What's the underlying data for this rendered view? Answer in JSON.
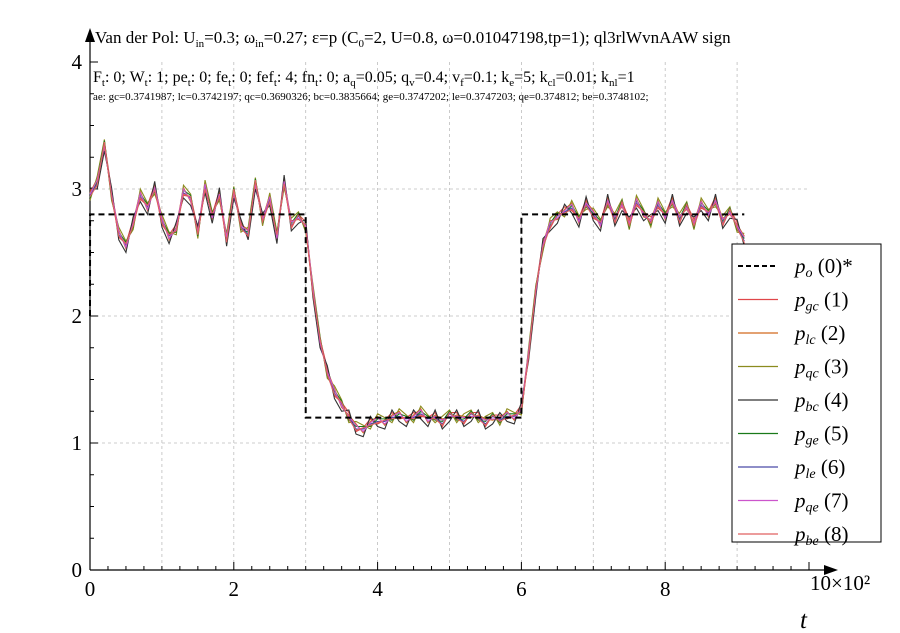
{
  "title": "Van der Pol: U_in=0.3; ω_in=0.27; ε=p (C_0=2, U=0.8, ω=0.01047198,tp=1); ql3rlWvnAAW sign",
  "title_parts": {
    "a": "Van der Pol: U",
    "a_sub": "in",
    "b": "=0.3; ω",
    "b_sub": "in",
    "c": "=0.27; ε=p (C",
    "c_sub": "0",
    "d": "=2, U=0.8, ω=0.01047198,tp=1); ql3rlWvnAAW sign"
  },
  "params_line": [
    {
      "t": "F"
    },
    {
      "s": "t"
    },
    {
      "t": ": 0; W"
    },
    {
      "s": "t"
    },
    {
      "t": ": 1; pe"
    },
    {
      "s": "t"
    },
    {
      "t": ": 0; fe"
    },
    {
      "s": "t"
    },
    {
      "t": ": 0; fef"
    },
    {
      "s": "t"
    },
    {
      "t": ": 4; fn"
    },
    {
      "s": "t"
    },
    {
      "t": ": 0; a"
    },
    {
      "s": "q"
    },
    {
      "t": "=0.05; q"
    },
    {
      "s": "v"
    },
    {
      "t": "=0.4; v"
    },
    {
      "s": "f"
    },
    {
      "t": "=0.1; k"
    },
    {
      "s": "e"
    },
    {
      "t": "=5; k"
    },
    {
      "s": "cl"
    },
    {
      "t": "=0.01; k"
    },
    {
      "s": "nl"
    },
    {
      "t": "=1"
    }
  ],
  "ae_line": "ae: gc=0.3741987; lc=0.3742197; qc=0.3690326; bc=0.3835664; ge=0.3747202; le=0.3747203; qe=0.374812; be=0.3748102;",
  "chart_data": {
    "type": "line",
    "xlabel": "t",
    "x_multiplier_label": "10×10²",
    "xlim": [
      0,
      10
    ],
    "ylim": [
      0,
      4
    ],
    "x_ticks": [
      0,
      2,
      4,
      6,
      8
    ],
    "x_tick_labels": [
      "0",
      "2",
      "4",
      "6",
      "8"
    ],
    "y_ticks": [
      0,
      1,
      2,
      3,
      4
    ],
    "y_tick_labels": [
      "0",
      "1",
      "2",
      "3",
      "4"
    ],
    "grid": true,
    "legend_position": "right",
    "reference": {
      "name": "p_o (0)*",
      "style": "dashed",
      "color": "#000000",
      "x": [
        0,
        0.001,
        3.0,
        3.0,
        6.0,
        6.0,
        9.1
      ],
      "y": [
        2.0,
        2.8,
        2.8,
        1.2,
        1.2,
        2.8,
        2.8
      ]
    },
    "series_x": [
      0,
      0.1,
      0.2,
      0.3,
      0.4,
      0.5,
      0.6,
      0.7,
      0.8,
      0.9,
      1.0,
      1.1,
      1.2,
      1.3,
      1.4,
      1.5,
      1.6,
      1.7,
      1.8,
      1.9,
      2.0,
      2.1,
      2.2,
      2.3,
      2.4,
      2.5,
      2.6,
      2.7,
      2.8,
      2.9,
      3.0,
      3.1,
      3.2,
      3.3,
      3.4,
      3.5,
      3.6,
      3.7,
      3.8,
      3.9,
      4.0,
      4.1,
      4.2,
      4.3,
      4.4,
      4.5,
      4.6,
      4.7,
      4.8,
      4.9,
      5.0,
      5.1,
      5.2,
      5.3,
      5.4,
      5.5,
      5.6,
      5.7,
      5.8,
      5.9,
      6.0,
      6.1,
      6.2,
      6.3,
      6.4,
      6.5,
      6.6,
      6.7,
      6.8,
      6.9,
      7.0,
      7.1,
      7.2,
      7.3,
      7.4,
      7.5,
      7.6,
      7.7,
      7.8,
      7.9,
      8.0,
      8.1,
      8.2,
      8.3,
      8.4,
      8.5,
      8.6,
      8.7,
      8.8,
      8.9,
      9.0,
      9.1
    ],
    "series_base": [
      2.95,
      3.05,
      3.35,
      2.95,
      2.65,
      2.55,
      2.72,
      2.95,
      2.85,
      3.0,
      2.75,
      2.62,
      2.68,
      2.98,
      2.92,
      2.65,
      3.02,
      2.78,
      2.95,
      2.6,
      2.98,
      2.7,
      2.65,
      3.05,
      2.75,
      2.92,
      2.62,
      3.05,
      2.72,
      2.78,
      2.7,
      2.2,
      1.8,
      1.55,
      1.4,
      1.3,
      1.2,
      1.12,
      1.1,
      1.15,
      1.18,
      1.16,
      1.2,
      1.22,
      1.18,
      1.2,
      1.24,
      1.18,
      1.2,
      1.16,
      1.22,
      1.2,
      1.18,
      1.22,
      1.2,
      1.16,
      1.2,
      1.18,
      1.22,
      1.2,
      1.26,
      1.7,
      2.2,
      2.55,
      2.72,
      2.78,
      2.82,
      2.86,
      2.75,
      2.88,
      2.8,
      2.72,
      2.9,
      2.76,
      2.88,
      2.72,
      2.9,
      2.8,
      2.74,
      2.88,
      2.78,
      2.9,
      2.76,
      2.86,
      2.72,
      2.88,
      2.8,
      2.9,
      2.74,
      2.82,
      2.7,
      2.6
    ],
    "series": [
      {
        "name": "p_gc (1)",
        "sub": "gc",
        "num": "(1)",
        "color": "#e0464a",
        "offsets": [
          0.04,
          -0.03,
          0.02
        ]
      },
      {
        "name": "p_lc (2)",
        "sub": "lc",
        "num": "(2)",
        "color": "#d2691e",
        "offsets": [
          0.02,
          0.03,
          -0.02
        ]
      },
      {
        "name": "p_qc (3)",
        "sub": "qc",
        "num": "(3)",
        "color": "#8b8b1e",
        "offsets": [
          -0.04,
          0.05,
          0.04
        ]
      },
      {
        "name": "p_bc (4)",
        "sub": "bc",
        "num": "(4)",
        "color": "#333333",
        "offsets": [
          0.06,
          -0.05,
          -0.05
        ]
      },
      {
        "name": "p_ge (5)",
        "sub": "ge",
        "num": "(5)",
        "color": "#1a7a1a",
        "offsets": [
          -0.02,
          0.01,
          0.03
        ]
      },
      {
        "name": "p_le (6)",
        "sub": "le",
        "num": "(6)",
        "color": "#4b4ba8",
        "offsets": [
          0.0,
          -0.01,
          0.01
        ]
      },
      {
        "name": "p_qe (7)",
        "sub": "qe",
        "num": "(7)",
        "color": "#cc55cc",
        "offsets": [
          0.01,
          0.02,
          -0.01
        ]
      },
      {
        "name": "p_be (8)",
        "sub": "be",
        "num": "(8)",
        "color": "#e06060",
        "offsets": [
          -0.01,
          -0.02,
          0.02
        ]
      }
    ]
  }
}
